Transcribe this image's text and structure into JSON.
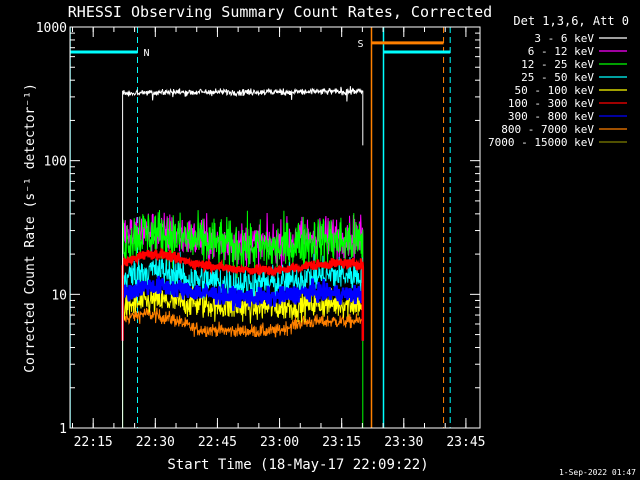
{
  "chart_data": {
    "type": "line",
    "title": "RHESSI Observing Summary Count Rates, Corrected",
    "xlabel": "Start Time (18-May-17 22:09:22)",
    "ylabel": "Corrected Count Rate (s⁻¹ detector⁻¹)",
    "y_scale": "log",
    "ylim": [
      1,
      1000
    ],
    "x_unit": "minutes after 22:09:22",
    "xlim": [
      0,
      99
    ],
    "x_ticks": [
      {
        "t": 5.6,
        "label": "22:15"
      },
      {
        "t": 20.6,
        "label": "22:30"
      },
      {
        "t": 35.6,
        "label": "22:45"
      },
      {
        "t": 50.6,
        "label": "23:00"
      },
      {
        "t": 65.6,
        "label": "23:15"
      },
      {
        "t": 80.6,
        "label": "23:30"
      },
      {
        "t": 95.6,
        "label": "23:45"
      }
    ],
    "y_ticks": [
      {
        "v": 1,
        "label": "1"
      },
      {
        "v": 10,
        "label": "10"
      },
      {
        "v": 100,
        "label": "100"
      },
      {
        "v": 1000,
        "label": "1000"
      }
    ],
    "legend": {
      "placement": "outside-right",
      "header": "Det 1,3,6, Att 0"
    },
    "data_window": [
      12.7,
      70.7
    ],
    "series": [
      {
        "name": "3 - 6 keV",
        "color": "#ffffff",
        "profile": [
          [
            12.7,
            320
          ],
          [
            20,
            325
          ],
          [
            30,
            325
          ],
          [
            40,
            326
          ],
          [
            50,
            327
          ],
          [
            60,
            328
          ],
          [
            68,
            330
          ],
          [
            70.3,
            330
          ]
        ],
        "noise": 0.03
      },
      {
        "name": "6 - 12 keV",
        "color": "#ff00ff",
        "profile": [
          [
            12.7,
            27
          ],
          [
            18,
            30
          ],
          [
            22,
            29
          ],
          [
            30,
            26
          ],
          [
            40,
            24
          ],
          [
            50,
            24
          ],
          [
            58,
            27
          ],
          [
            65,
            27
          ],
          [
            70.3,
            27
          ]
        ],
        "noise": 0.18
      },
      {
        "name": "12 - 25 keV",
        "color": "#00ff00",
        "profile": [
          [
            12.7,
            25
          ],
          [
            18,
            29
          ],
          [
            22,
            28
          ],
          [
            30,
            25
          ],
          [
            40,
            23
          ],
          [
            50,
            22
          ],
          [
            58,
            25
          ],
          [
            65,
            25
          ],
          [
            70.3,
            25
          ]
        ],
        "noise": 0.22
      },
      {
        "name": "25 - 50 keV",
        "color": "#00ffff",
        "profile": [
          [
            12.7,
            13
          ],
          [
            18,
            15
          ],
          [
            22,
            15
          ],
          [
            30,
            13
          ],
          [
            40,
            12
          ],
          [
            50,
            12
          ],
          [
            58,
            13.5
          ],
          [
            65,
            14
          ],
          [
            70.3,
            14
          ]
        ],
        "noise": 0.15
      },
      {
        "name": "50 - 100 keV",
        "color": "#ffff00",
        "profile": [
          [
            12.7,
            8
          ],
          [
            20,
            9
          ],
          [
            30,
            8.5
          ],
          [
            40,
            8
          ],
          [
            50,
            8
          ],
          [
            60,
            8.5
          ],
          [
            70.3,
            8.5
          ]
        ],
        "noise": 0.12
      },
      {
        "name": "100 - 300 keV",
        "color": "#ff0000",
        "profile": [
          [
            12.7,
            17
          ],
          [
            18,
            20
          ],
          [
            22,
            20
          ],
          [
            30,
            17
          ],
          [
            40,
            15.5
          ],
          [
            50,
            15
          ],
          [
            58,
            16.5
          ],
          [
            65,
            17
          ],
          [
            70.3,
            17
          ]
        ],
        "noise": 0.04
      },
      {
        "name": "300 - 800 keV",
        "color": "#0000ff",
        "profile": [
          [
            12.7,
            10
          ],
          [
            18,
            11.5
          ],
          [
            22,
            11.5
          ],
          [
            30,
            10.5
          ],
          [
            40,
            9.5
          ],
          [
            50,
            9.5
          ],
          [
            58,
            10.5
          ],
          [
            65,
            10
          ],
          [
            70.3,
            10
          ]
        ],
        "noise": 0.08
      },
      {
        "name": "800 - 7000 keV",
        "color": "#ff8000",
        "profile": [
          [
            12.7,
            6.5
          ],
          [
            18,
            7.2
          ],
          [
            25,
            6.5
          ],
          [
            30,
            5.5
          ],
          [
            40,
            5.3
          ],
          [
            50,
            5.3
          ],
          [
            56,
            6.2
          ],
          [
            65,
            6.3
          ],
          [
            70.3,
            6.3
          ]
        ],
        "noise": 0.06
      },
      {
        "name": "7000 - 15000 keV",
        "color": "#808000",
        "profile": [],
        "noise": 0
      }
    ],
    "annotations": {
      "night_label": "N",
      "saa_label": "S",
      "night": [
        {
          "start": 0,
          "end": 16.3,
          "value": 650,
          "color": "#00ffff"
        },
        {
          "start": 75.7,
          "end": 91.8,
          "value": 650,
          "color": "#00ffff"
        }
      ],
      "saa": [
        {
          "start": 72.8,
          "end": 90.2,
          "value": 760,
          "color": "#ff8000"
        }
      ],
      "solid_markers": [
        {
          "t": 0,
          "color": "#00ffff"
        },
        {
          "t": 72.8,
          "color": "#ff8000"
        },
        {
          "t": 75.7,
          "color": "#00ffff"
        }
      ],
      "dashed_markers": [
        {
          "t": 16.3,
          "color": "#00ffff"
        },
        {
          "t": 90.2,
          "color": "#ff8000"
        },
        {
          "t": 91.8,
          "color": "#00ffff"
        }
      ]
    },
    "footer_date": "1-Sep-2022 01:47"
  }
}
